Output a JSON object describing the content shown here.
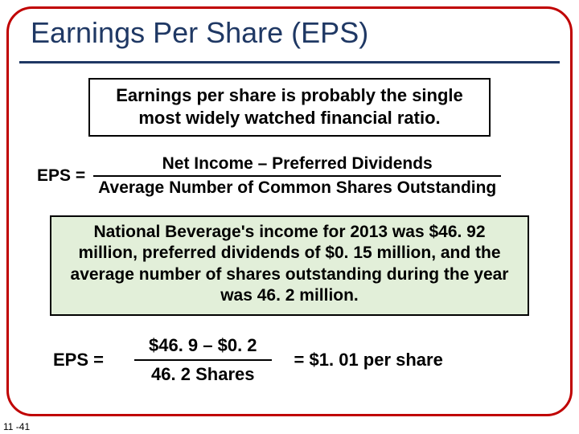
{
  "colors": {
    "frame_border": "#c00000",
    "title_color": "#1f3864",
    "underline_color": "#1f3864",
    "box2_bg": "#e2efd9"
  },
  "title": "Earnings Per Share (EPS)",
  "box1": "Earnings per share is probably the single most widely watched financial ratio.",
  "formula1": {
    "lhs": "EPS  =",
    "numerator": "Net Income – Preferred Dividends",
    "denominator": "Average Number of Common Shares Outstanding"
  },
  "box2": "National Beverage's income for 2013 was $46. 92 million, preferred dividends of $0. 15 million, and the average number of shares outstanding during the year was 46. 2 million.",
  "formula2": {
    "lhs": "EPS  =",
    "numerator": "$46. 9 – $0. 2",
    "denominator": "46. 2 Shares",
    "result": "=  $1. 01 per share"
  },
  "page_number": "11 -41"
}
